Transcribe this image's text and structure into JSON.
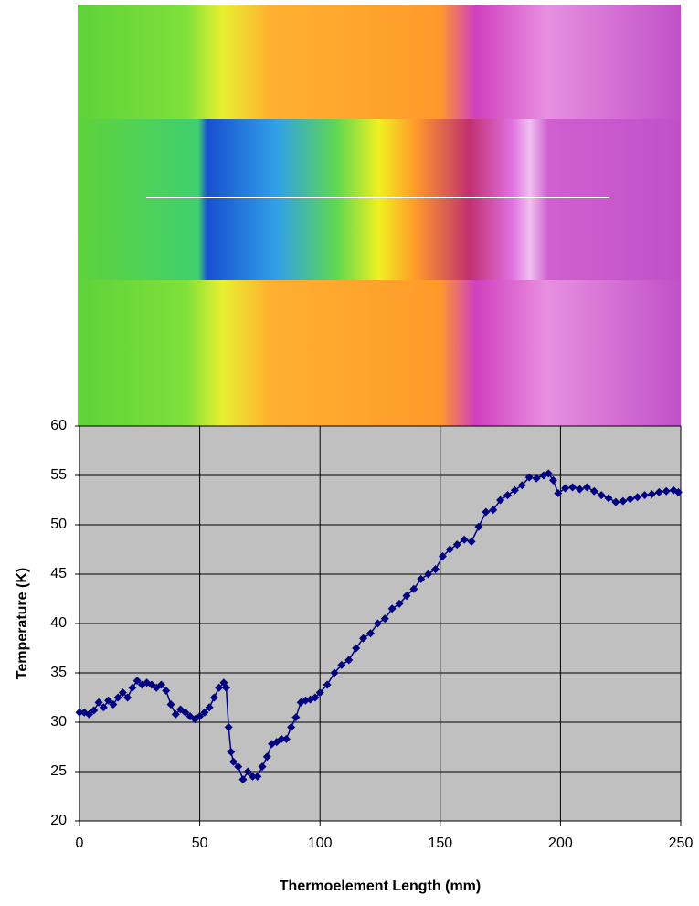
{
  "chart_data": {
    "type": "line",
    "x_label": "Thermoelement Length (mm)",
    "y_label": "Temperature (K)",
    "x": [
      0,
      2,
      4,
      6,
      8,
      10,
      12,
      14,
      16,
      18,
      20,
      22,
      24,
      26,
      28,
      30,
      32,
      34,
      36,
      38,
      40,
      42,
      44,
      46,
      48,
      50,
      52,
      54,
      56,
      58,
      60,
      61,
      62,
      63,
      64,
      66,
      68,
      70,
      72,
      74,
      76,
      78,
      80,
      82,
      84,
      86,
      88,
      90,
      92,
      94,
      96,
      98,
      100,
      103,
      106,
      109,
      112,
      115,
      118,
      121,
      124,
      127,
      130,
      133,
      136,
      139,
      142,
      145,
      148,
      151,
      154,
      157,
      160,
      163,
      166,
      169,
      172,
      175,
      178,
      181,
      184,
      187,
      190,
      193,
      195,
      197,
      199,
      202,
      205,
      208,
      211,
      214,
      217,
      220,
      223,
      226,
      229,
      232,
      235,
      238,
      241,
      244,
      247,
      249
    ],
    "series": [
      {
        "name": "Temperature",
        "color": "#000080",
        "values": [
          31,
          31,
          30.8,
          31.2,
          32,
          31.5,
          32.2,
          31.8,
          32.5,
          33,
          32.5,
          33.5,
          34.2,
          33.8,
          34,
          33.8,
          33.5,
          33.8,
          33.2,
          31.8,
          30.8,
          31.3,
          31,
          30.6,
          30.3,
          30.6,
          31,
          31.5,
          32.5,
          33.5,
          34,
          33.5,
          29.5,
          27,
          26,
          25.5,
          24.2,
          25,
          24.5,
          24.5,
          25.5,
          26.5,
          27.8,
          28,
          28.3,
          28.3,
          29.5,
          30.5,
          32,
          32.2,
          32.3,
          32.5,
          33,
          33.8,
          35,
          35.8,
          36.3,
          37.5,
          38.5,
          39,
          40,
          40.5,
          41.5,
          42,
          42.8,
          43.5,
          44.5,
          45,
          45.5,
          46.8,
          47.5,
          48,
          48.5,
          48.3,
          49.8,
          51.3,
          51.5,
          52.5,
          53,
          53.5,
          54,
          54.8,
          54.7,
          55,
          55.2,
          54.5,
          53.2,
          53.7,
          53.8,
          53.6,
          53.8,
          53.4,
          53,
          52.7,
          52.3,
          52.4,
          52.6,
          52.8,
          53,
          53.1,
          53.3,
          53.4,
          53.5,
          53.3
        ]
      }
    ],
    "xlim": [
      0,
      250
    ],
    "xticks": [
      0,
      50,
      100,
      150,
      200,
      250
    ],
    "ylim": [
      20,
      60
    ],
    "yticks": [
      20,
      25,
      30,
      35,
      40,
      45,
      50,
      55,
      60
    ],
    "grid": true,
    "background": "#c0c0c0"
  }
}
